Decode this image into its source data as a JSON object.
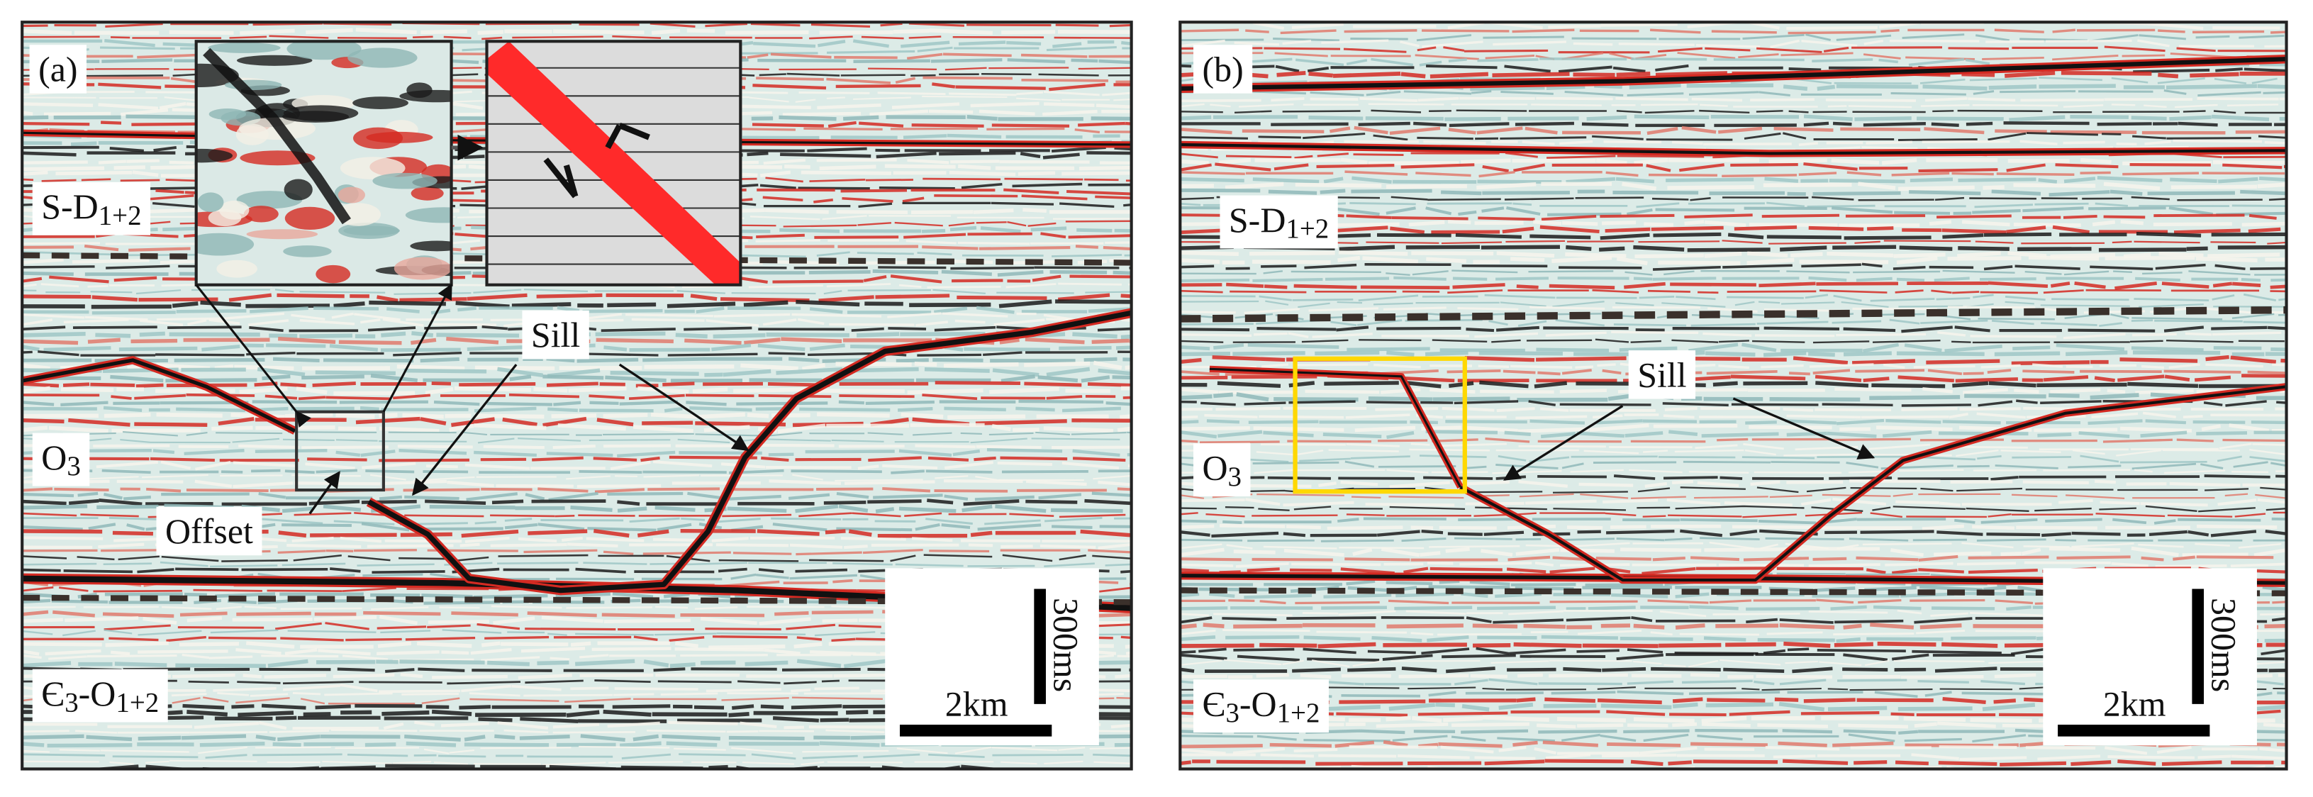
{
  "panels": [
    {
      "label": "(a)",
      "strata": [
        {
          "parts": [
            "S-D",
            "1+2"
          ]
        },
        {
          "parts": [
            "O",
            "3"
          ]
        },
        {
          "parts": [
            "Є",
            "3",
            "-O",
            "1+2"
          ]
        }
      ],
      "annotations": [
        "Sill",
        "Offset"
      ],
      "scale": {
        "vertical": "300ms",
        "horizontal": "2km"
      }
    },
    {
      "label": "(b)",
      "strata": [
        {
          "parts": [
            "S-D",
            "1+2"
          ]
        },
        {
          "parts": [
            "O",
            "3"
          ]
        },
        {
          "parts": [
            "Є",
            "3",
            "-O",
            "1+2"
          ]
        }
      ],
      "annotations": [
        "Sill"
      ],
      "scale": {
        "vertical": "300ms",
        "horizontal": "2km"
      }
    }
  ]
}
